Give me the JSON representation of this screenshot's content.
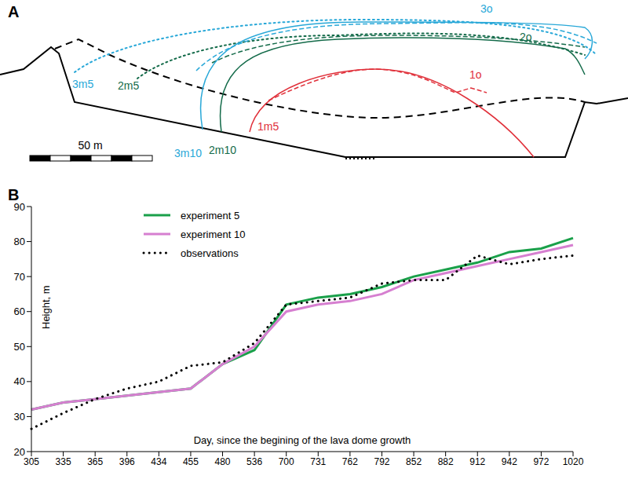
{
  "panel_a": {
    "panel": "A",
    "labels": [
      "3o",
      "2o",
      "1o",
      "3m5",
      "2m5",
      "1m5",
      "3m10",
      "2m10"
    ],
    "scale_bar": "50 m"
  },
  "chart_data": {
    "panel": "B",
    "type": "line",
    "x_label": "Day, since the begining of the lava dome growth",
    "y_label": "Height, m",
    "categories": [
      305,
      335,
      365,
      396,
      434,
      455,
      480,
      536,
      700,
      731,
      762,
      792,
      852,
      882,
      912,
      942,
      972,
      1020
    ],
    "series": [
      {
        "name": "experiment 5",
        "color": "#1aa04a",
        "line_style": "solid",
        "values": [
          32,
          34,
          35,
          36,
          37,
          38,
          45,
          49,
          62,
          64,
          65,
          67,
          70,
          72,
          74,
          77,
          78,
          81
        ]
      },
      {
        "name": "experiment 10",
        "color": "#d67fd0",
        "line_style": "solid",
        "values": [
          32,
          34,
          35,
          36,
          37,
          38,
          45,
          50,
          60,
          62,
          63,
          65,
          69,
          71,
          73,
          75,
          77,
          79
        ]
      },
      {
        "name": "observations",
        "color": "#000000",
        "line_style": "dotted",
        "values": [
          26.5,
          31,
          35,
          38,
          40,
          44.5,
          45.5,
          51,
          62,
          63,
          64,
          68,
          69,
          69,
          76,
          73.5,
          75,
          76
        ]
      }
    ],
    "ylim": [
      20,
      90
    ],
    "yticks": [
      20,
      30,
      40,
      50,
      60,
      70,
      80,
      90
    ],
    "grid": false,
    "legend": "upper left"
  }
}
